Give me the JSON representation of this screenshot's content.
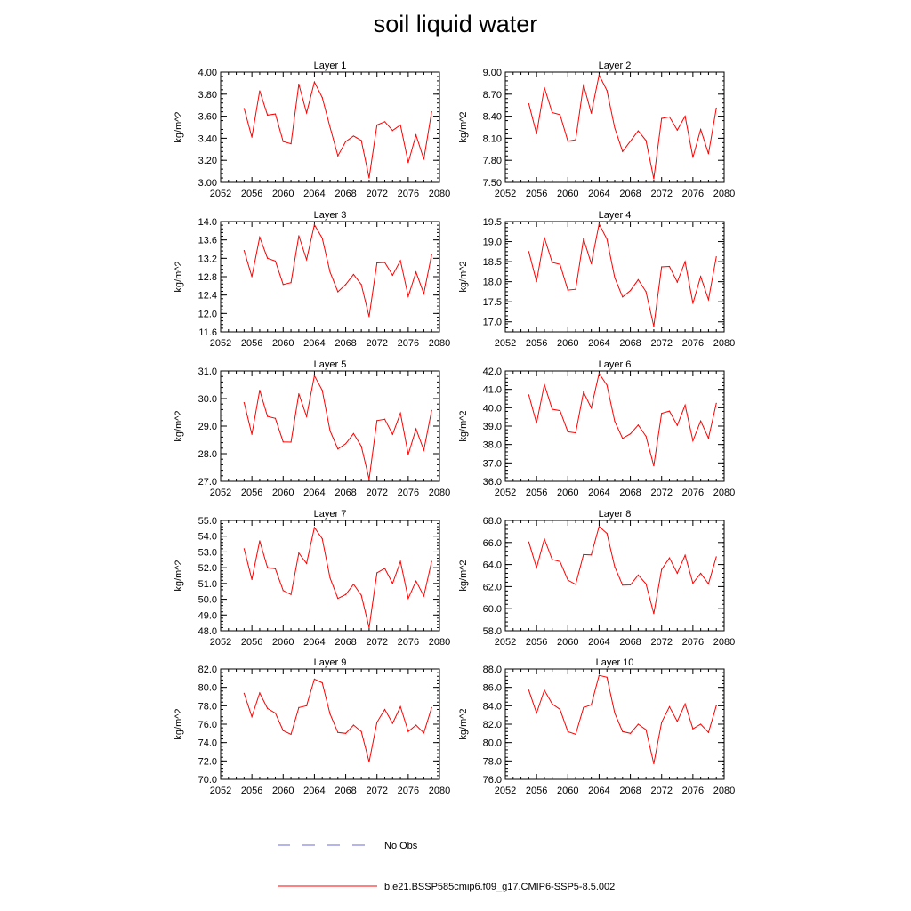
{
  "title": "soil liquid water",
  "colors": {
    "model": "#ff0000",
    "obs": "#6b6bd6",
    "axis": "#000000"
  },
  "legend": {
    "obs_label": "No Obs",
    "model_label": "b.e21.BSSP585cmip6.f09_g17.CMIP6-SSP5-8.5.002"
  },
  "chart_data": [
    {
      "type": "line",
      "title": "Layer 1",
      "ylabel": "kg/m^2",
      "xlim": [
        2052,
        2080
      ],
      "xticks": [
        "2052",
        "2056",
        "2060",
        "2064",
        "2068",
        "2072",
        "2076",
        "2080"
      ],
      "ylim": [
        3.0,
        4.0
      ],
      "yticks": [
        "3.00",
        "3.20",
        "3.40",
        "3.60",
        "3.80",
        "4.00"
      ],
      "series": [
        {
          "name": "b.e21.BSSP585cmip6.f09_g17.CMIP6-SSP5-8.5.002",
          "x": [
            2055,
            2056,
            2057,
            2058,
            2059,
            2060,
            2061,
            2062,
            2063,
            2064,
            2065,
            2066,
            2067,
            2068,
            2069,
            2070,
            2071,
            2072,
            2073,
            2074,
            2075,
            2076,
            2077,
            2078,
            2079
          ],
          "y": [
            3.67,
            3.41,
            3.83,
            3.61,
            3.62,
            3.37,
            3.35,
            3.89,
            3.63,
            3.91,
            3.77,
            3.5,
            3.24,
            3.37,
            3.42,
            3.38,
            3.04,
            3.52,
            3.55,
            3.47,
            3.52,
            3.18,
            3.43,
            3.21,
            3.64
          ]
        }
      ]
    },
    {
      "type": "line",
      "title": "Layer 2",
      "ylabel": "kg/m^2",
      "xlim": [
        2052,
        2080
      ],
      "xticks": [
        "2052",
        "2056",
        "2060",
        "2064",
        "2068",
        "2072",
        "2076",
        "2080"
      ],
      "ylim": [
        7.5,
        9.0
      ],
      "yticks": [
        "7.50",
        "7.80",
        "8.10",
        "8.40",
        "8.70",
        "9.00"
      ],
      "series": [
        {
          "name": "b.e21.BSSP585cmip6.f09_g17.CMIP6-SSP5-8.5.002",
          "x": [
            2055,
            2056,
            2057,
            2058,
            2059,
            2060,
            2061,
            2062,
            2063,
            2064,
            2065,
            2066,
            2067,
            2068,
            2069,
            2070,
            2071,
            2072,
            2073,
            2074,
            2075,
            2076,
            2077,
            2078,
            2079
          ],
          "y": [
            8.57,
            8.16,
            8.79,
            8.45,
            8.42,
            8.06,
            8.08,
            8.83,
            8.44,
            8.96,
            8.75,
            8.24,
            7.92,
            8.06,
            8.2,
            8.07,
            7.55,
            8.37,
            8.39,
            8.21,
            8.4,
            7.84,
            8.22,
            7.89,
            8.51
          ]
        }
      ]
    },
    {
      "type": "line",
      "title": "Layer 3",
      "ylabel": "kg/m^2",
      "xlim": [
        2052,
        2080
      ],
      "xticks": [
        "2052",
        "2056",
        "2060",
        "2064",
        "2068",
        "2072",
        "2076",
        "2080"
      ],
      "ylim": [
        11.6,
        14.0
      ],
      "yticks": [
        "11.6",
        "12.0",
        "12.4",
        "12.8",
        "13.2",
        "13.6",
        "14.0"
      ],
      "series": [
        {
          "name": "b.e21.BSSP585cmip6.f09_g17.CMIP6-SSP5-8.5.002",
          "x": [
            2055,
            2056,
            2057,
            2058,
            2059,
            2060,
            2061,
            2062,
            2063,
            2064,
            2065,
            2066,
            2067,
            2068,
            2069,
            2070,
            2071,
            2072,
            2073,
            2074,
            2075,
            2076,
            2077,
            2078,
            2079
          ],
          "y": [
            13.37,
            12.8,
            13.66,
            13.2,
            13.14,
            12.63,
            12.67,
            13.69,
            13.17,
            13.93,
            13.64,
            12.9,
            12.47,
            12.63,
            12.85,
            12.63,
            11.93,
            13.1,
            13.11,
            12.83,
            13.15,
            12.37,
            12.9,
            12.43,
            13.28
          ]
        }
      ]
    },
    {
      "type": "line",
      "title": "Layer 4",
      "ylabel": "kg/m^2",
      "xlim": [
        2052,
        2080
      ],
      "xticks": [
        "2052",
        "2056",
        "2060",
        "2064",
        "2068",
        "2072",
        "2076",
        "2080"
      ],
      "ylim": [
        16.75,
        19.5
      ],
      "yticks": [
        "17.0",
        "17.5",
        "18.0",
        "18.5",
        "19.0",
        "19.5"
      ],
      "series": [
        {
          "name": "b.e21.BSSP585cmip6.f09_g17.CMIP6-SSP5-8.5.002",
          "x": [
            2055,
            2056,
            2057,
            2058,
            2059,
            2060,
            2061,
            2062,
            2063,
            2064,
            2065,
            2066,
            2067,
            2068,
            2069,
            2070,
            2071,
            2072,
            2073,
            2074,
            2075,
            2076,
            2077,
            2078,
            2079
          ],
          "y": [
            18.75,
            18.0,
            19.1,
            18.48,
            18.43,
            17.79,
            17.81,
            19.07,
            18.45,
            19.44,
            19.06,
            18.1,
            17.62,
            17.78,
            18.05,
            17.75,
            16.89,
            18.37,
            18.38,
            17.99,
            18.5,
            17.46,
            18.13,
            17.55,
            18.62
          ]
        }
      ]
    },
    {
      "type": "line",
      "title": "Layer 5",
      "ylabel": "kg/m^2",
      "xlim": [
        2052,
        2080
      ],
      "xticks": [
        "2052",
        "2056",
        "2060",
        "2064",
        "2068",
        "2072",
        "2076",
        "2080"
      ],
      "ylim": [
        27.0,
        31.0
      ],
      "yticks": [
        "27.0",
        "28.0",
        "29.0",
        "30.0",
        "31.0"
      ],
      "series": [
        {
          "name": "b.e21.BSSP585cmip6.f09_g17.CMIP6-SSP5-8.5.002",
          "x": [
            2055,
            2056,
            2057,
            2058,
            2059,
            2060,
            2061,
            2062,
            2063,
            2064,
            2065,
            2066,
            2067,
            2068,
            2069,
            2070,
            2071,
            2072,
            2073,
            2074,
            2075,
            2076,
            2077,
            2078,
            2079
          ],
          "y": [
            29.85,
            28.7,
            30.3,
            29.35,
            29.28,
            28.43,
            28.42,
            30.17,
            29.35,
            30.83,
            30.3,
            28.83,
            28.17,
            28.36,
            28.73,
            28.27,
            27.08,
            29.2,
            29.25,
            28.7,
            29.47,
            27.97,
            28.9,
            28.13,
            29.57
          ]
        }
      ]
    },
    {
      "type": "line",
      "title": "Layer 6",
      "ylabel": "kg/m^2",
      "xlim": [
        2052,
        2080
      ],
      "xticks": [
        "2052",
        "2056",
        "2060",
        "2064",
        "2068",
        "2072",
        "2076",
        "2080"
      ],
      "ylim": [
        36.0,
        42.0
      ],
      "yticks": [
        "36.0",
        "37.0",
        "38.0",
        "39.0",
        "40.0",
        "41.0",
        "42.0"
      ],
      "series": [
        {
          "name": "b.e21.BSSP585cmip6.f09_g17.CMIP6-SSP5-8.5.002",
          "x": [
            2055,
            2056,
            2057,
            2058,
            2059,
            2060,
            2061,
            2062,
            2063,
            2064,
            2065,
            2066,
            2067,
            2068,
            2069,
            2070,
            2071,
            2072,
            2073,
            2074,
            2075,
            2076,
            2077,
            2078,
            2079
          ],
          "y": [
            40.7,
            39.16,
            41.27,
            39.92,
            39.84,
            38.69,
            38.63,
            40.85,
            39.99,
            41.87,
            41.23,
            39.26,
            38.33,
            38.58,
            39.06,
            38.45,
            36.84,
            39.69,
            39.82,
            39.04,
            40.14,
            38.2,
            39.28,
            38.34,
            40.24
          ]
        }
      ]
    },
    {
      "type": "line",
      "title": "Layer 7",
      "ylabel": "kg/m^2",
      "xlim": [
        2052,
        2080
      ],
      "xticks": [
        "2052",
        "2056",
        "2060",
        "2064",
        "2068",
        "2072",
        "2076",
        "2080"
      ],
      "ylim": [
        48.0,
        55.0
      ],
      "yticks": [
        "48.0",
        "49.0",
        "50.0",
        "51.0",
        "52.0",
        "53.0",
        "54.0",
        "55.0"
      ],
      "series": [
        {
          "name": "b.e21.BSSP585cmip6.f09_g17.CMIP6-SSP5-8.5.002",
          "x": [
            2055,
            2056,
            2057,
            2058,
            2059,
            2060,
            2061,
            2062,
            2063,
            2064,
            2065,
            2066,
            2067,
            2068,
            2069,
            2070,
            2071,
            2072,
            2073,
            2074,
            2075,
            2076,
            2077,
            2078,
            2079
          ],
          "y": [
            53.2,
            51.25,
            53.7,
            52.0,
            51.93,
            50.55,
            50.3,
            52.93,
            52.27,
            54.55,
            53.84,
            51.35,
            50.05,
            50.3,
            50.95,
            50.25,
            48.2,
            51.67,
            51.95,
            51.0,
            52.4,
            50.05,
            51.15,
            50.2,
            52.4
          ]
        }
      ]
    },
    {
      "type": "line",
      "title": "Layer 8",
      "ylabel": "kg/m^2",
      "xlim": [
        2052,
        2080
      ],
      "xticks": [
        "2052",
        "2056",
        "2060",
        "2064",
        "2068",
        "2072",
        "2076",
        "2080"
      ],
      "ylim": [
        58.0,
        68.0
      ],
      "yticks": [
        "58.0",
        "60.0",
        "62.0",
        "64.0",
        "66.0",
        "68.0"
      ],
      "series": [
        {
          "name": "b.e21.BSSP585cmip6.f09_g17.CMIP6-SSP5-8.5.002",
          "x": [
            2055,
            2056,
            2057,
            2058,
            2059,
            2060,
            2061,
            2062,
            2063,
            2064,
            2065,
            2066,
            2067,
            2068,
            2069,
            2070,
            2071,
            2072,
            2073,
            2074,
            2075,
            2076,
            2077,
            2078,
            2079
          ],
          "y": [
            66.05,
            63.7,
            66.33,
            64.45,
            64.27,
            62.6,
            62.2,
            64.9,
            64.87,
            67.45,
            66.83,
            63.8,
            62.13,
            62.15,
            63.05,
            62.25,
            59.55,
            63.55,
            64.6,
            63.2,
            64.85,
            62.3,
            63.2,
            62.25,
            64.7
          ]
        }
      ]
    },
    {
      "type": "line",
      "title": "Layer 9",
      "ylabel": "kg/m^2",
      "xlim": [
        2052,
        2080
      ],
      "xticks": [
        "2052",
        "2056",
        "2060",
        "2064",
        "2068",
        "2072",
        "2076",
        "2080"
      ],
      "ylim": [
        70.0,
        82.0
      ],
      "yticks": [
        "70.0",
        "72.0",
        "74.0",
        "76.0",
        "78.0",
        "80.0",
        "82.0"
      ],
      "series": [
        {
          "name": "b.e21.BSSP585cmip6.f09_g17.CMIP6-SSP5-8.5.002",
          "x": [
            2055,
            2056,
            2057,
            2058,
            2059,
            2060,
            2061,
            2062,
            2063,
            2064,
            2065,
            2066,
            2067,
            2068,
            2069,
            2070,
            2071,
            2072,
            2073,
            2074,
            2075,
            2076,
            2077,
            2078,
            2079
          ],
          "y": [
            79.35,
            76.8,
            79.4,
            77.7,
            77.2,
            75.3,
            74.9,
            77.8,
            78.0,
            80.9,
            80.5,
            77.1,
            75.1,
            75.0,
            75.9,
            75.2,
            71.9,
            76.2,
            77.6,
            76.1,
            77.9,
            75.2,
            75.9,
            75.05,
            77.8
          ]
        }
      ]
    },
    {
      "type": "line",
      "title": "Layer 10",
      "ylabel": "kg/m^2",
      "xlim": [
        2052,
        2080
      ],
      "xticks": [
        "2052",
        "2056",
        "2060",
        "2064",
        "2068",
        "2072",
        "2076",
        "2080"
      ],
      "ylim": [
        76.0,
        88.0
      ],
      "yticks": [
        "76.0",
        "78.0",
        "80.0",
        "82.0",
        "84.0",
        "86.0",
        "88.0"
      ],
      "series": [
        {
          "name": "b.e21.BSSP585cmip6.f09_g17.CMIP6-SSP5-8.5.002",
          "x": [
            2055,
            2056,
            2057,
            2058,
            2059,
            2060,
            2061,
            2062,
            2063,
            2064,
            2065,
            2066,
            2067,
            2068,
            2069,
            2070,
            2071,
            2072,
            2073,
            2074,
            2075,
            2076,
            2077,
            2078,
            2079
          ],
          "y": [
            85.7,
            83.2,
            85.7,
            84.2,
            83.6,
            81.2,
            80.9,
            83.8,
            84.1,
            87.3,
            87.1,
            83.2,
            81.2,
            81.0,
            82.0,
            81.4,
            77.7,
            82.2,
            83.9,
            82.3,
            84.2,
            81.5,
            82.0,
            81.1,
            84.0
          ]
        }
      ]
    }
  ]
}
